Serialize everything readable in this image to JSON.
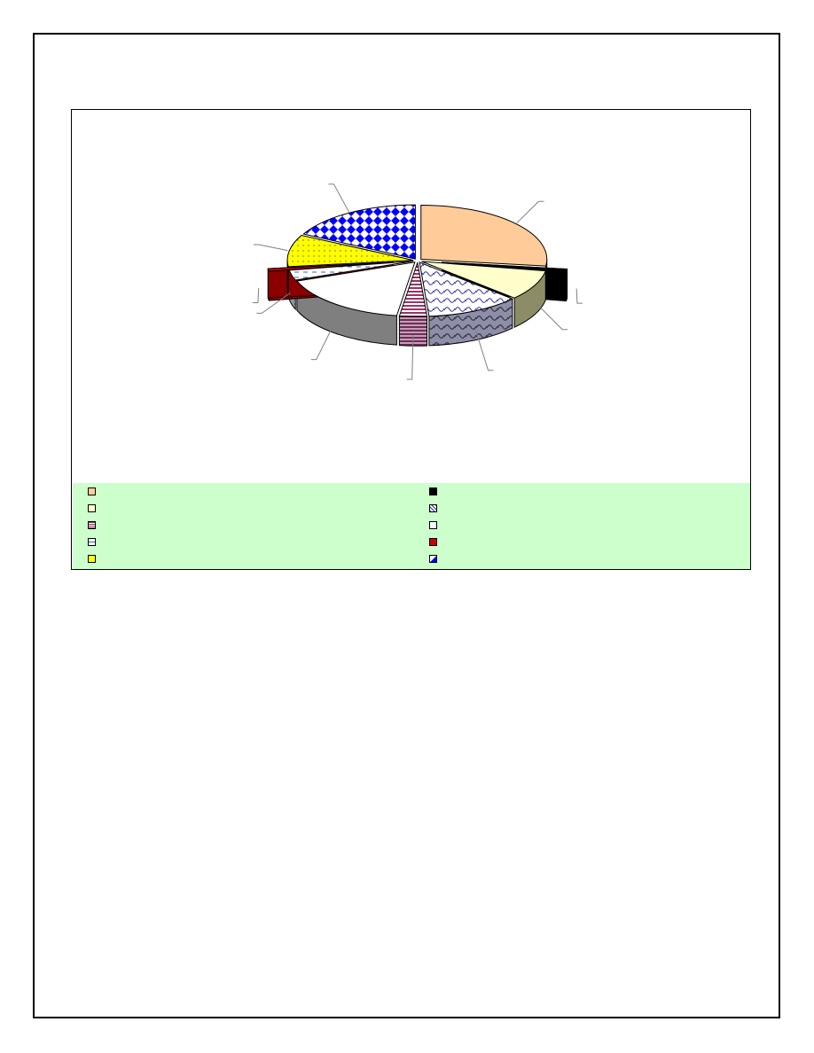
{
  "chart_data": {
    "type": "pie",
    "variant": "3d-exploded",
    "title": "",
    "data_labels_shown": false,
    "legend_position": "bottom",
    "slices": [
      {
        "label": "",
        "value": 27.0,
        "color": "#ffcc99",
        "side_color": "#b08a6a",
        "pattern": "solid"
      },
      {
        "label": "",
        "value": 0.8,
        "color": "#000000",
        "side_color": "#000000",
        "pattern": "solid",
        "exploded": true
      },
      {
        "label": "",
        "value": 9.0,
        "color": "#ffffcc",
        "side_color": "#8c8c66",
        "pattern": "solid"
      },
      {
        "label": "",
        "value": 12.0,
        "color": "#ccccff",
        "side_color": "#8e8ea8",
        "pattern": "wave"
      },
      {
        "label": "",
        "value": 3.5,
        "color": "#ff99cc",
        "side_color": "#a86b8a",
        "pattern": "horizontal-stripes"
      },
      {
        "label": "",
        "value": 17.0,
        "color": "#ffffff",
        "side_color": "#7f7f7f",
        "pattern": "solid"
      },
      {
        "label": "",
        "value": 3.0,
        "color": "#ccffff",
        "side_color": "#8a9a9a",
        "pattern": "dashes"
      },
      {
        "label": "",
        "value": 0.8,
        "color": "#cc0000",
        "side_color": "#8b0000",
        "pattern": "solid",
        "exploded": true
      },
      {
        "label": "",
        "value": 9.5,
        "color": "#ffff00",
        "side_color": "#a6a600",
        "pattern": "dots"
      },
      {
        "label": "",
        "value": 17.4,
        "color": "#0000ff",
        "side_color": "#00007f",
        "pattern": "checker"
      }
    ],
    "legend_columns": 2
  }
}
